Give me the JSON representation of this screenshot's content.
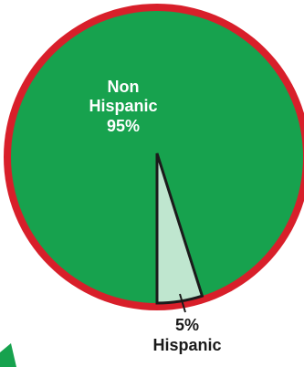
{
  "chart_data": {
    "type": "pie",
    "slices": [
      {
        "label": "Non Hispanic",
        "value": 95,
        "value_text": "95%",
        "color": "#17a24e"
      },
      {
        "label": "Hispanic",
        "value": 5,
        "value_text": "5%",
        "color": "#bfe6cf"
      }
    ],
    "border_color": "#d81f2a",
    "slice_edge_color": "#1b1b1b",
    "title": "",
    "legend": "none"
  },
  "labels": {
    "non_hispanic_line1": "Non",
    "non_hispanic_line2": "Hispanic",
    "non_hispanic_value": "95%",
    "hispanic_value": "5%",
    "hispanic_label": "Hispanic"
  }
}
